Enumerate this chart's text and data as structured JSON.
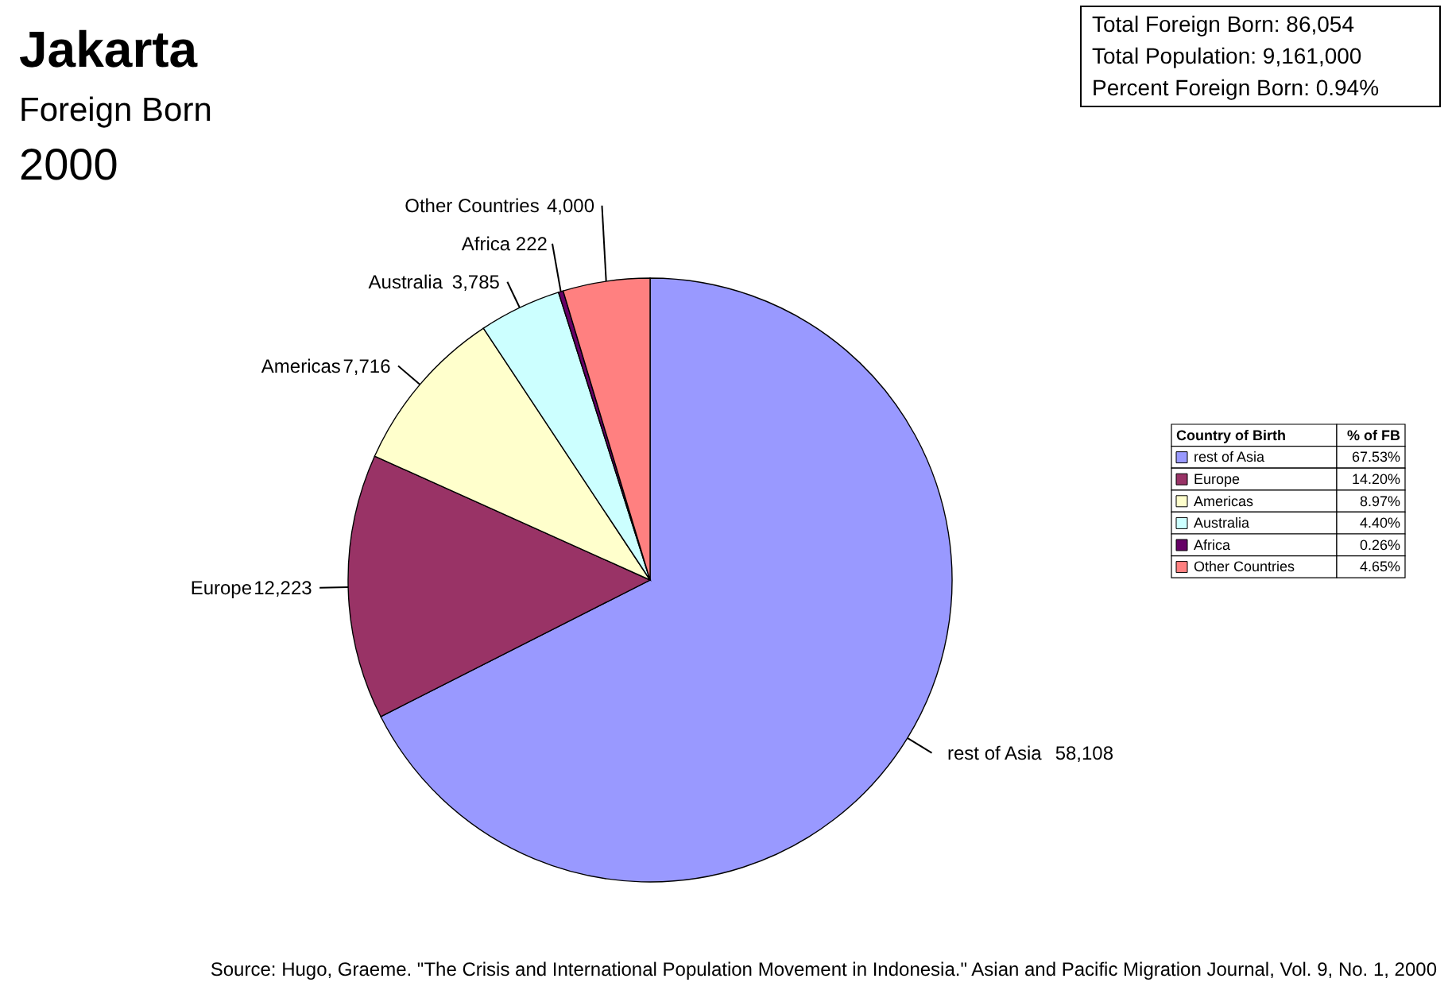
{
  "chart_data": {
    "type": "pie",
    "title": "Jakarta",
    "subtitle": "Foreign Born",
    "legend_title": "Country of Birth",
    "value_labels": [
      "58,108",
      "12,223",
      "7,716",
      "3,785",
      "222",
      "4,000"
    ],
    "legend": "right",
    "categories": [
      "rest of Asia",
      "Europe",
      "Americas",
      "Australia",
      "Africa",
      "Other Countries"
    ],
    "values": [
      58108,
      12223,
      7716,
      3785,
      222,
      4000
    ],
    "colors": [
      "#9999ff",
      "#993366",
      "#ffffcc",
      "#ccffff",
      "#660066",
      "#ff8080"
    ],
    "annotations": [
      "2000",
      "Total Foreign Born:     86,054",
      "Total Population:     9,161,000",
      "Percent Foreign Born:  0.94%",
      "% of FB",
      "67.53%",
      "14.20%",
      "8.97%",
      "4.40%",
      "0.26%",
      "4.65%",
      "Source: Hugo, Graeme. \"The Crisis and International Population Movement in Indonesia.\" Asian and Pacific Migration Journal, Vol. 9, No. 1, 2000"
    ]
  }
}
